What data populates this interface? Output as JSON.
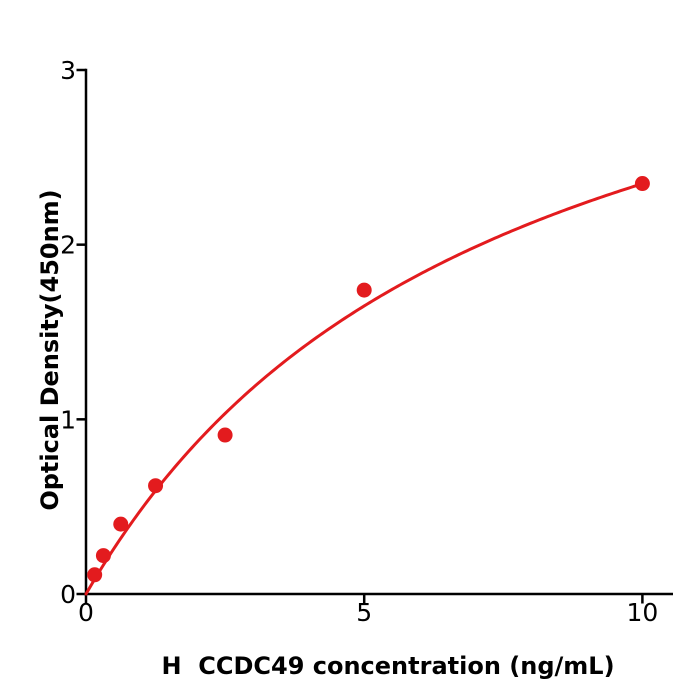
{
  "chart_data": {
    "type": "scatter",
    "title": "",
    "xlabel": "H  CCDC49 concentration (ng/mL)",
    "ylabel": "Optical Density(450nm)",
    "xlim": [
      0,
      10.55
    ],
    "ylim": [
      0,
      3
    ],
    "x_ticks": [
      0,
      5,
      10
    ],
    "y_ticks": [
      0,
      1,
      2,
      3
    ],
    "grid": false,
    "legend": false,
    "marker": "circle",
    "points": [
      {
        "x": 0.156,
        "y": 0.11
      },
      {
        "x": 0.313,
        "y": 0.22
      },
      {
        "x": 0.625,
        "y": 0.4
      },
      {
        "x": 1.25,
        "y": 0.62
      },
      {
        "x": 2.5,
        "y": 0.91
      },
      {
        "x": 5,
        "y": 1.74
      },
      {
        "x": 10,
        "y": 2.35
      }
    ],
    "fit_curve": {
      "model": "saturation: y = vmax * x / (km + x)",
      "vmax": 4.08,
      "km": 7.37,
      "x_range": [
        0,
        10
      ]
    },
    "colors": {
      "series": "#e31b1e",
      "axis": "#000000",
      "background": "#ffffff"
    }
  }
}
